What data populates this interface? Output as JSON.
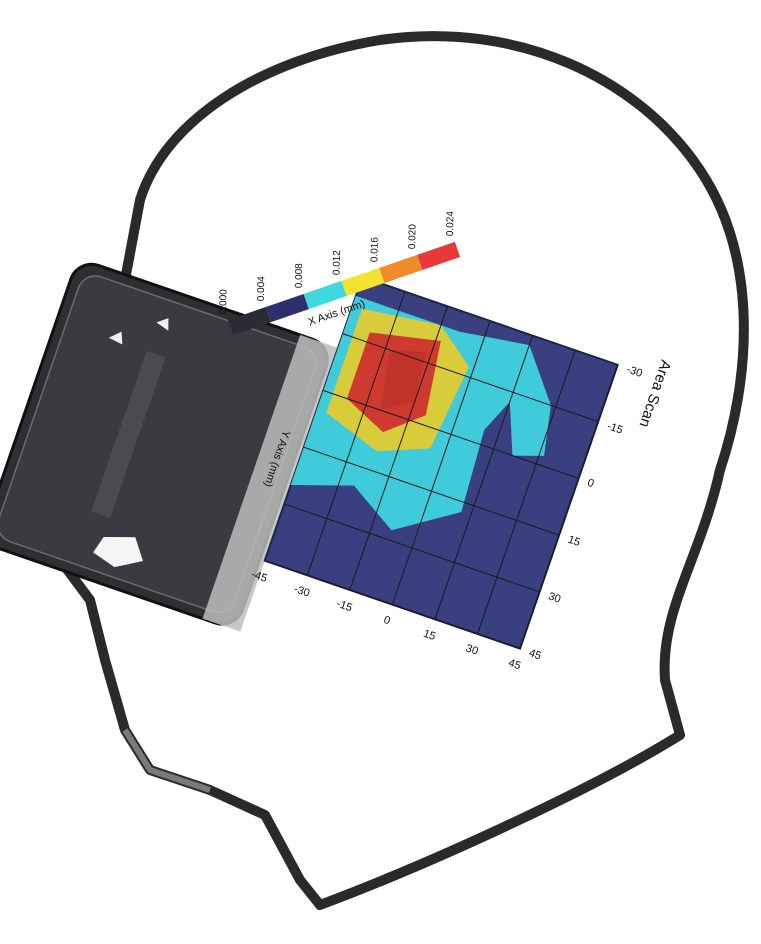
{
  "title": "Area Scan",
  "x_axis_label": "X Axis (mm)",
  "y_axis_label": "Y Axis (mm)",
  "x_ticks": [
    "-45",
    "-30",
    "-15",
    "0",
    "15",
    "30",
    "45"
  ],
  "y_ticks": [
    "-30",
    "-15",
    "0",
    "15",
    "30",
    "45"
  ],
  "scale_labels": [
    "0.000",
    "0.004",
    "0.008",
    "0.012",
    "0.016",
    "0.020",
    "0.024"
  ],
  "scale_colors": [
    "#2b2b33",
    "#2e2f6e",
    "#3fd7e0",
    "#f2e330",
    "#f08a2a",
    "#e8393a"
  ],
  "colors": {
    "background_field": "#3a3f80",
    "level_low": "#3fd3de",
    "level_mid": "#d8cc3a",
    "level_high": "#cf3a30",
    "head_outline": "#2a2a2a",
    "phone_body": "#2f2f33"
  }
}
